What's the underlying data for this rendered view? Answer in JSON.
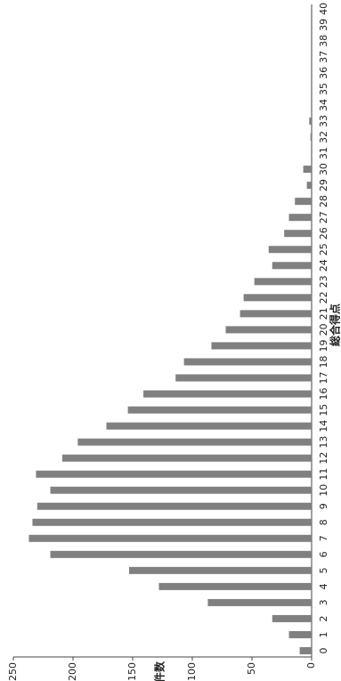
{
  "chart_data": {
    "type": "bar",
    "y_label": "件数",
    "x_label": "総合得点",
    "categories": [
      "0",
      "1",
      "2",
      "3",
      "4",
      "5",
      "6",
      "7",
      "8",
      "9",
      "10",
      "11",
      "12",
      "13",
      "14",
      "15",
      "16",
      "17",
      "18",
      "19",
      "20",
      "21",
      "22",
      "23",
      "24",
      "25",
      "26",
      "27",
      "28",
      "29",
      "30",
      "31",
      "32",
      "33",
      "34",
      "35",
      "36",
      "37",
      "38",
      "39",
      "40"
    ],
    "values": [
      10,
      19,
      33,
      87,
      128,
      153,
      219,
      237,
      234,
      230,
      219,
      231,
      209,
      196,
      172,
      154,
      141,
      114,
      107,
      84,
      72,
      60,
      57,
      48,
      33,
      36,
      23,
      19,
      14,
      4,
      7,
      0,
      1,
      2,
      0,
      0,
      0,
      0,
      0,
      0,
      0
    ],
    "color": "#808080",
    "ylim": [
      0,
      250
    ],
    "yticks": [
      0,
      50,
      100,
      150,
      200,
      250
    ]
  }
}
